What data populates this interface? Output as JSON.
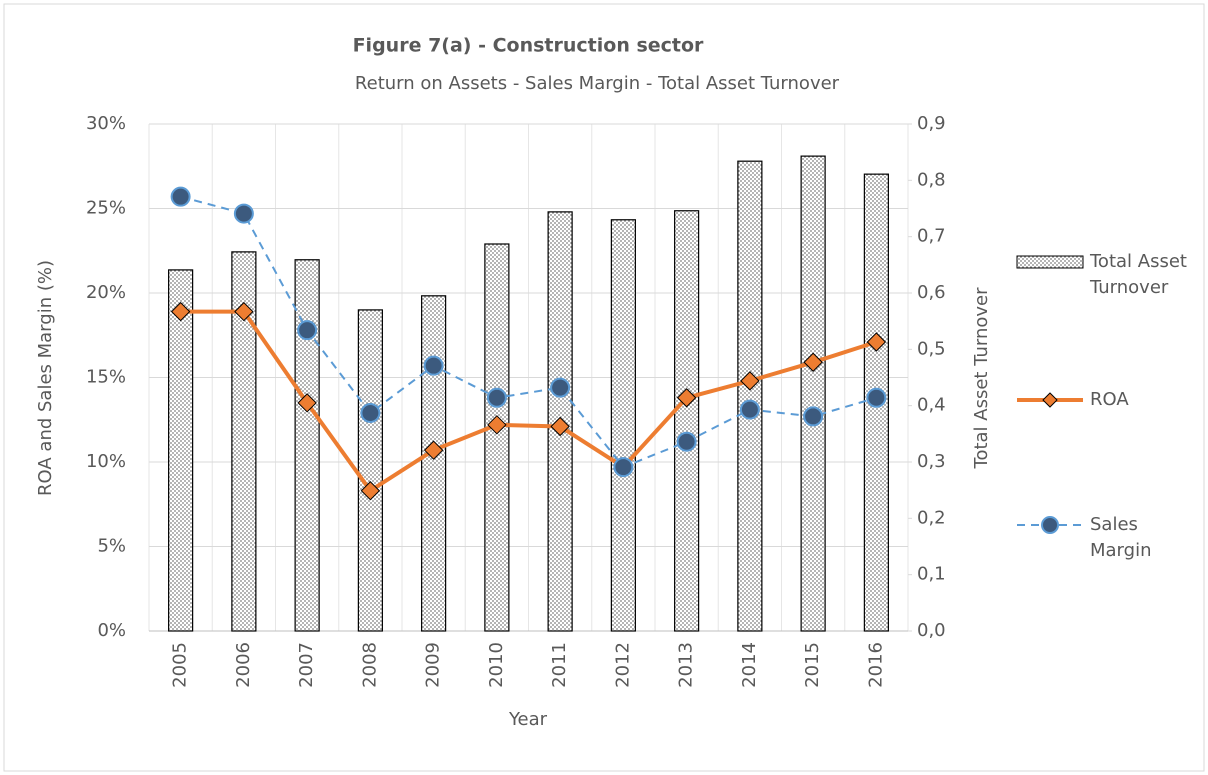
{
  "chart_data": {
    "type": "combo",
    "title": "Figure 7(a) - Construction sector",
    "subtitle": "Return on Assets - Sales Margin - Total Asset Turnover",
    "x_label": "Year",
    "y_label": "ROA and Sales Margin (%)",
    "y2_label": "Total Asset Turnover",
    "categories": [
      "2005",
      "2006",
      "2007",
      "2008",
      "2009",
      "2010",
      "2011",
      "2012",
      "2013",
      "2014",
      "2015",
      "2016"
    ],
    "series": [
      {
        "name": "Total Asset Turnover",
        "type": "bar",
        "axis": "y2",
        "color": "#7f7f7f",
        "values": [
          0.641,
          0.673,
          0.659,
          0.57,
          0.595,
          0.687,
          0.744,
          0.73,
          0.746,
          0.834,
          0.843,
          0.811
        ]
      },
      {
        "name": "ROA",
        "type": "line",
        "marker": "diamond",
        "line_style": "solid",
        "color": "#ED7D31",
        "values": [
          18.9,
          18.9,
          13.5,
          8.3,
          10.7,
          12.2,
          12.1,
          9.7,
          13.8,
          14.8,
          15.9,
          17.1
        ]
      },
      {
        "name": "Sales Margin",
        "type": "line",
        "marker": "circle",
        "line_style": "dashed",
        "color": "#5B9BD5",
        "values": [
          25.7,
          24.7,
          17.8,
          12.9,
          15.7,
          13.8,
          14.4,
          9.7,
          11.2,
          13.1,
          12.7,
          13.8
        ]
      }
    ],
    "ylim": [
      0,
      30
    ],
    "yticks": [
      {
        "value": 0,
        "label": "0%"
      },
      {
        "value": 5,
        "label": "5%"
      },
      {
        "value": 10,
        "label": "10%"
      },
      {
        "value": 15,
        "label": "15%"
      },
      {
        "value": 20,
        "label": "20%"
      },
      {
        "value": 25,
        "label": "25%"
      },
      {
        "value": 30,
        "label": "30%"
      }
    ],
    "y2lim": [
      0,
      0.9
    ],
    "y2ticks": [
      {
        "value": 0,
        "label": "0,0"
      },
      {
        "value": 0.1,
        "label": "0,1"
      },
      {
        "value": 0.2,
        "label": "0,2"
      },
      {
        "value": 0.3,
        "label": "0,3"
      },
      {
        "value": 0.4,
        "label": "0,4"
      },
      {
        "value": 0.5,
        "label": "0,5"
      },
      {
        "value": 0.6,
        "label": "0,6"
      },
      {
        "value": 0.7,
        "label": "0,7"
      },
      {
        "value": 0.8,
        "label": "0,8"
      },
      {
        "value": 0.9,
        "label": "0,9"
      }
    ],
    "grid": true,
    "legend": "right"
  }
}
